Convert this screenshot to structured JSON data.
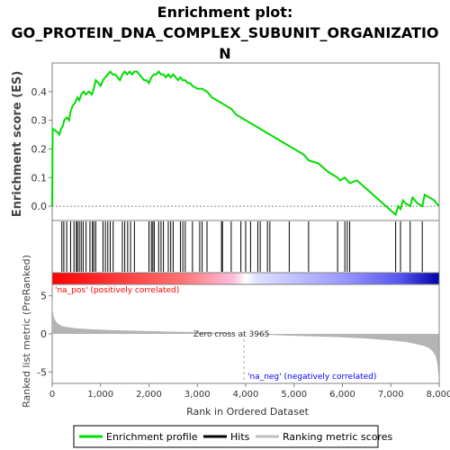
{
  "chart_data": {
    "type": "line",
    "title": "Enrichment plot:\nGO_PROTEIN_DNA_COMPLEX_SUBUNIT_ORGANIZATIO\nN",
    "es_panel": {
      "ylabel": "Enrichment score (ES)",
      "ylim": [
        -0.05,
        0.5
      ],
      "yticks": [
        0.0,
        0.1,
        0.2,
        0.3,
        0.4
      ],
      "ytick_labels": [
        "0.0",
        "0.1",
        "0.2",
        "0.3",
        "0.4"
      ],
      "series": [
        {
          "name": "Enrichment profile",
          "color": "#00dd00",
          "x": [
            0,
            10,
            100,
            150,
            180,
            220,
            250,
            300,
            350,
            380,
            420,
            470,
            520,
            560,
            600,
            650,
            700,
            760,
            820,
            860,
            900,
            960,
            1000,
            1050,
            1100,
            1150,
            1200,
            1250,
            1300,
            1350,
            1400,
            1450,
            1500,
            1550,
            1600,
            1650,
            1700,
            1750,
            1800,
            1850,
            1900,
            1950,
            2000,
            2050,
            2100,
            2150,
            2200,
            2250,
            2300,
            2350,
            2400,
            2450,
            2500,
            2550,
            2600,
            2650,
            2700,
            2750,
            2800,
            2850,
            2900,
            3000,
            3100,
            3200,
            3300,
            3400,
            3500,
            3600,
            3700,
            3800,
            3900,
            4000,
            4200,
            4400,
            4600,
            4800,
            5000,
            5200,
            5300,
            5500,
            5700,
            5900,
            5950,
            6050,
            6100,
            6150,
            6300,
            6500,
            6700,
            6900,
            7100,
            7150,
            7200,
            7250,
            7300,
            7400,
            7450,
            7550,
            7650,
            7700,
            7800,
            7900,
            7990
          ],
          "values": [
            0.0,
            0.27,
            0.26,
            0.25,
            0.27,
            0.28,
            0.3,
            0.31,
            0.3,
            0.33,
            0.35,
            0.36,
            0.38,
            0.37,
            0.39,
            0.4,
            0.39,
            0.4,
            0.39,
            0.41,
            0.44,
            0.43,
            0.42,
            0.44,
            0.45,
            0.46,
            0.47,
            0.46,
            0.46,
            0.45,
            0.44,
            0.46,
            0.47,
            0.46,
            0.47,
            0.46,
            0.47,
            0.47,
            0.46,
            0.45,
            0.44,
            0.44,
            0.43,
            0.45,
            0.46,
            0.46,
            0.47,
            0.46,
            0.46,
            0.45,
            0.46,
            0.45,
            0.46,
            0.45,
            0.44,
            0.45,
            0.44,
            0.44,
            0.43,
            0.43,
            0.42,
            0.41,
            0.41,
            0.4,
            0.38,
            0.37,
            0.36,
            0.35,
            0.34,
            0.32,
            0.31,
            0.3,
            0.28,
            0.26,
            0.24,
            0.22,
            0.2,
            0.18,
            0.16,
            0.15,
            0.12,
            0.1,
            0.09,
            0.1,
            0.09,
            0.08,
            0.09,
            0.06,
            0.03,
            0.0,
            -0.03,
            0.0,
            -0.01,
            0.02,
            0.01,
            0.0,
            0.03,
            0.01,
            0.0,
            0.04,
            0.03,
            0.02,
            0.0
          ]
        }
      ]
    },
    "hits": [
      200,
      240,
      300,
      380,
      450,
      500,
      520,
      560,
      600,
      640,
      700,
      780,
      830,
      860,
      900,
      1050,
      1100,
      1150,
      1200,
      1260,
      1450,
      1500,
      1560,
      1620,
      1700,
      2000,
      2050,
      2080,
      2110,
      2200,
      2250,
      2300,
      2400,
      2450,
      2500,
      2650,
      2700,
      2750,
      2900,
      3050,
      3100,
      3200,
      3500,
      3520,
      3700,
      3900,
      4000,
      4100,
      4250,
      4300,
      4450,
      4500,
      4900,
      5300,
      5900,
      6050,
      6100,
      6150,
      7100,
      7200,
      7400,
      7650
    ],
    "metric_panel": {
      "ylabel": "Ranked list metric (PreRanked)",
      "ylim": [
        -6.5,
        6.5
      ],
      "yticks": [
        -5,
        0,
        5
      ],
      "ytick_labels": [
        "-5",
        "0",
        "5"
      ],
      "pos_label": "'na_pos' (positively correlated)",
      "neg_label": "'na_neg' (negatively correlated)",
      "zero_cross": "Zero cross at 3965",
      "zero_cross_rank": 3965,
      "curve_x": [
        0,
        10,
        30,
        60,
        100,
        150,
        200,
        300,
        500,
        800,
        1200,
        1800,
        2500,
        3200,
        3700,
        3965,
        4300,
        5000,
        6000,
        6500,
        7000,
        7300,
        7500,
        7700,
        7800,
        7880,
        7930,
        7960,
        7980,
        7995
      ],
      "curve_y": [
        5.0,
        3.2,
        2.3,
        1.8,
        1.45,
        1.2,
        1.05,
        0.9,
        0.75,
        0.6,
        0.5,
        0.4,
        0.3,
        0.2,
        0.1,
        0.0,
        -0.1,
        -0.25,
        -0.45,
        -0.6,
        -0.85,
        -1.05,
        -1.3,
        -1.6,
        -1.9,
        -2.4,
        -3.0,
        -3.8,
        -4.8,
        -6.0
      ]
    },
    "xlabel": "Rank in Ordered Dataset",
    "xlim": [
      0,
      8000
    ],
    "xticks": [
      0,
      1000,
      2000,
      3000,
      4000,
      5000,
      6000,
      7000,
      8000
    ],
    "xtick_labels": [
      "0",
      "1,000",
      "2,000",
      "3,000",
      "4,000",
      "5,000",
      "6,000",
      "7,000",
      "8,000"
    ],
    "legend": {
      "placement": "bottom",
      "items": [
        {
          "label": "Enrichment profile",
          "color": "#00dd00"
        },
        {
          "label": "Hits",
          "color": "#000000"
        },
        {
          "label": "Ranking metric scores",
          "color": "#c0c0c0"
        }
      ]
    },
    "colors": {
      "profile": "#00dd00",
      "hits": "#000000",
      "metric_fill": "#b4b4b4",
      "pos_text": "#ff0000",
      "neg_text": "#0000ff",
      "bar_start": "#ff0000",
      "bar_mid_pos": "#ffc0e0",
      "bar_white": "#ffffff",
      "bar_mid_neg": "#9999ff",
      "bar_end": "#0000aa"
    }
  }
}
